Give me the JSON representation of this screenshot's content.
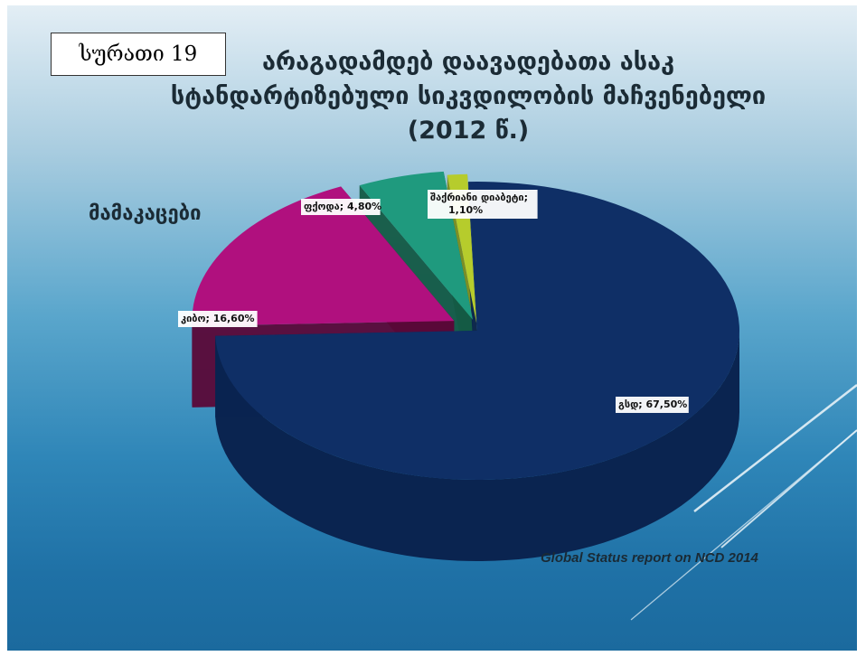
{
  "figure_label": "სურათი 19",
  "title_lines": [
    "არაგადამდებ დაავადებათა ასაკ",
    "სტანდარტიზებული სიკვდილობის მაჩვენებელი",
    "(2012 წ.)"
  ],
  "group_label": "მამაკაცები",
  "source": "Global Status report on NCD 2014",
  "chart_data": {
    "type": "pie",
    "title": "არაგადამდებ დაავადებათა ასაკ სტანდარტიზებული სიკვდილობის მაჩვენებელი (2012 წ.)",
    "categories": [
      "გსდ",
      "კიბო",
      "ფქოდა",
      "შაქრიანი დიაბეტი"
    ],
    "values": [
      67.5,
      16.6,
      4.8,
      1.1
    ],
    "labels": [
      "გსდ; 67,50%",
      "კიბო; 16,60%",
      "ფქოდა; 4,80%",
      "შაქრიანი დიაბეტი; 1,10%"
    ],
    "colors": [
      "#0f2f66",
      "#b0107e",
      "#1f9a7e",
      "#b6cc2c"
    ],
    "side_colors": [
      "#0a2450",
      "#5a0838",
      "#145a44",
      "#7c8c1c"
    ],
    "style": "exploded-3d"
  }
}
